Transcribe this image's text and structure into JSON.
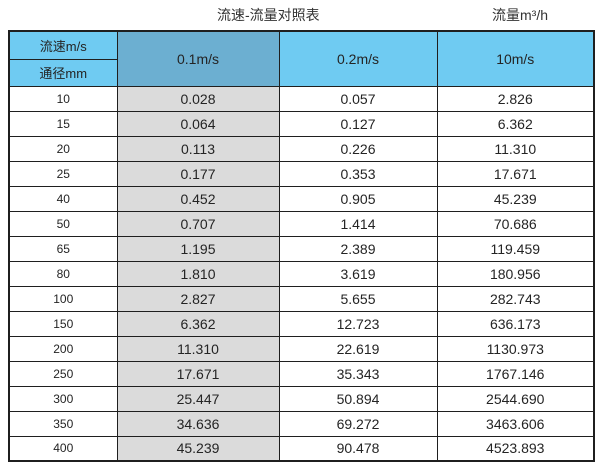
{
  "page": {
    "title": "流速-流量对照表",
    "unit_label": "流量m³/h"
  },
  "table": {
    "corner": {
      "top": "流速m/s",
      "bottom": "通径mm"
    },
    "speed_columns": [
      "0.1m/s",
      "0.2m/s",
      "10m/s"
    ],
    "rows": [
      {
        "dn": "10",
        "values": [
          "0.028",
          "0.057",
          "2.826"
        ]
      },
      {
        "dn": "15",
        "values": [
          "0.064",
          "0.127",
          "6.362"
        ]
      },
      {
        "dn": "20",
        "values": [
          "0.113",
          "0.226",
          "11.310"
        ]
      },
      {
        "dn": "25",
        "values": [
          "0.177",
          "0.353",
          "17.671"
        ]
      },
      {
        "dn": "40",
        "values": [
          "0.452",
          "0.905",
          "45.239"
        ]
      },
      {
        "dn": "50",
        "values": [
          "0.707",
          "1.414",
          "70.686"
        ]
      },
      {
        "dn": "65",
        "values": [
          "1.195",
          "2.389",
          "119.459"
        ]
      },
      {
        "dn": "80",
        "values": [
          "1.810",
          "3.619",
          "180.956"
        ]
      },
      {
        "dn": "100",
        "values": [
          "2.827",
          "5.655",
          "282.743"
        ]
      },
      {
        "dn": "150",
        "values": [
          "6.362",
          "12.723",
          "636.173"
        ]
      },
      {
        "dn": "200",
        "values": [
          "11.310",
          "22.619",
          "1130.973"
        ]
      },
      {
        "dn": "250",
        "values": [
          "17.671",
          "35.343",
          "1767.146"
        ]
      },
      {
        "dn": "300",
        "values": [
          "25.447",
          "50.894",
          "2544.690"
        ]
      },
      {
        "dn": "350",
        "values": [
          "34.636",
          "69.272",
          "3463.606"
        ]
      },
      {
        "dn": "400",
        "values": [
          "45.239",
          "90.478",
          "4523.893"
        ]
      }
    ]
  },
  "colors": {
    "header_cyan": "#6FCBF2",
    "header_muted_blue": "#6CAFD1",
    "column_gray": "#DBDBDB",
    "border": "#1f1f1f"
  },
  "chart_data": {
    "type": "table",
    "title": "流速-流量对照表",
    "unit": "流量m³/h",
    "columns": [
      "通径mm",
      "0.1m/s",
      "0.2m/s",
      "10m/s"
    ],
    "rows": [
      [
        10,
        0.028,
        0.057,
        2.826
      ],
      [
        15,
        0.064,
        0.127,
        6.362
      ],
      [
        20,
        0.113,
        0.226,
        11.31
      ],
      [
        25,
        0.177,
        0.353,
        17.671
      ],
      [
        40,
        0.452,
        0.905,
        45.239
      ],
      [
        50,
        0.707,
        1.414,
        70.686
      ],
      [
        65,
        1.195,
        2.389,
        119.459
      ],
      [
        80,
        1.81,
        3.619,
        180.956
      ],
      [
        100,
        2.827,
        5.655,
        282.743
      ],
      [
        150,
        6.362,
        12.723,
        636.173
      ],
      [
        200,
        11.31,
        22.619,
        1130.973
      ],
      [
        250,
        17.671,
        35.343,
        1767.146
      ],
      [
        300,
        25.447,
        50.894,
        2544.69
      ],
      [
        350,
        34.636,
        69.272,
        3463.606
      ],
      [
        400,
        45.239,
        90.478,
        4523.893
      ]
    ]
  }
}
